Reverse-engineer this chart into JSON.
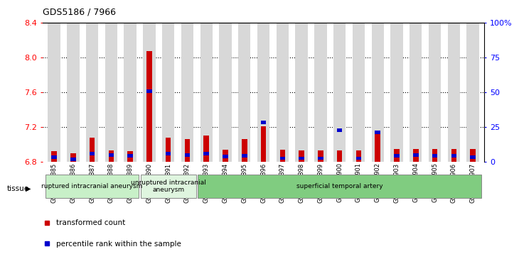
{
  "title": "GDS5186 / 7966",
  "samples": [
    "GSM1306885",
    "GSM1306886",
    "GSM1306887",
    "GSM1306888",
    "GSM1306889",
    "GSM1306890",
    "GSM1306891",
    "GSM1306892",
    "GSM1306893",
    "GSM1306894",
    "GSM1306895",
    "GSM1306896",
    "GSM1306897",
    "GSM1306898",
    "GSM1306899",
    "GSM1306900",
    "GSM1306901",
    "GSM1306902",
    "GSM1306903",
    "GSM1306904",
    "GSM1306905",
    "GSM1306906",
    "GSM1306907"
  ],
  "red_values": [
    6.92,
    6.9,
    7.08,
    6.93,
    6.92,
    8.07,
    7.08,
    7.06,
    7.1,
    6.94,
    7.06,
    7.21,
    6.94,
    6.93,
    6.93,
    6.93,
    6.93,
    7.13,
    6.95,
    6.95,
    6.95,
    6.95,
    6.95
  ],
  "blue_values": [
    6.83,
    6.81,
    6.87,
    6.86,
    6.85,
    7.59,
    6.87,
    6.86,
    6.87,
    6.84,
    6.85,
    7.23,
    6.82,
    6.82,
    6.82,
    7.14,
    6.82,
    7.12,
    6.85,
    6.86,
    6.85,
    6.85,
    6.83
  ],
  "y_min": 6.8,
  "y_max": 8.4,
  "y_ticks": [
    6.8,
    7.2,
    7.6,
    8.0,
    8.4
  ],
  "y2_ticks": [
    0,
    25,
    50,
    75,
    100
  ],
  "y2_labels": [
    "0",
    "25",
    "50",
    "75",
    "100%"
  ],
  "groups": [
    {
      "label": "ruptured intracranial aneurysm",
      "start": 0,
      "end": 5,
      "color": "#c8f0c8"
    },
    {
      "label": "unruptured intracranial\naneurysm",
      "start": 5,
      "end": 8,
      "color": "#dff5df"
    },
    {
      "label": "superficial temporal artery",
      "start": 8,
      "end": 23,
      "color": "#80cc80"
    }
  ],
  "red_color": "#cc0000",
  "blue_color": "#0000cc",
  "bar_bg_color": "#d8d8d8",
  "bg_bar_width": 0.65,
  "red_bar_width": 0.28,
  "blue_bar_height": 0.04,
  "tissue_label": "tissue",
  "legend_items": [
    {
      "label": "transformed count",
      "color": "#cc0000"
    },
    {
      "label": "percentile rank within the sample",
      "color": "#0000cc"
    }
  ]
}
